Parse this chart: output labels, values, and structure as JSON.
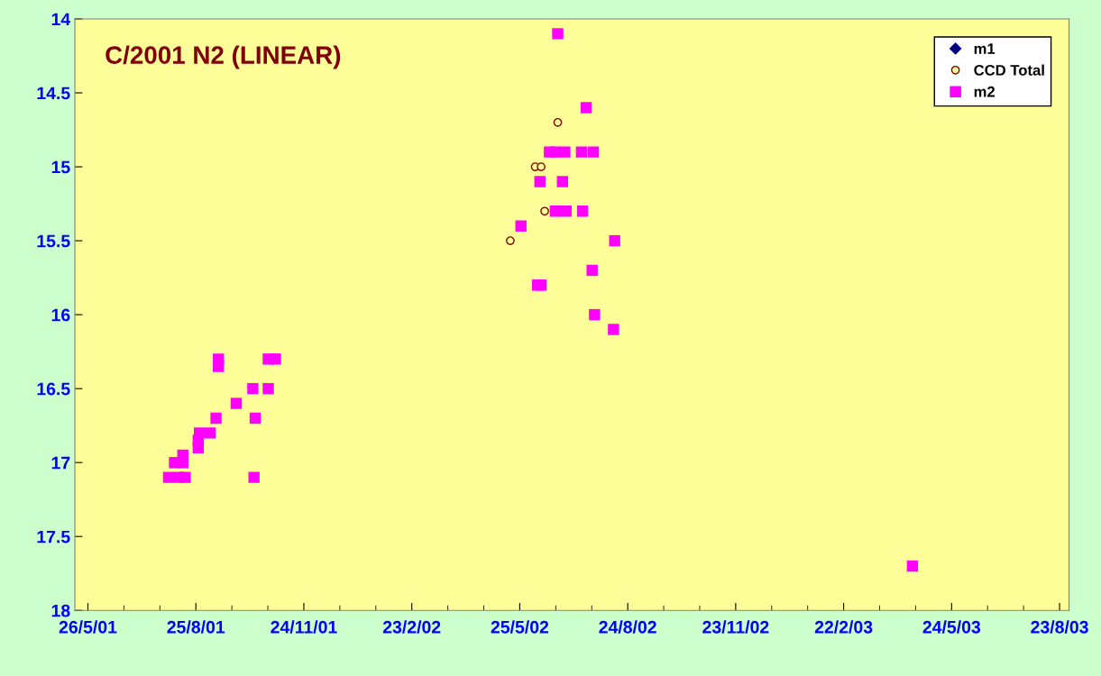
{
  "chart_data": {
    "type": "scatter",
    "title": "C/2001 N2 (LINEAR)",
    "series": [
      {
        "name": "m1",
        "color": "#000080",
        "marker": "diamond"
      },
      {
        "name": "CCD Total",
        "color": "#800000",
        "marker": "circle",
        "x": [
          "2002-06-26",
          "2002-06-07",
          "2002-06-12",
          "2002-06-15",
          "2002-05-17"
        ],
        "values": [
          14.7,
          15.0,
          15.0,
          15.3,
          15.5
        ]
      },
      {
        "name": "m2",
        "color": "#ff00ff",
        "marker": "square",
        "x": [
          "2001-09-13",
          "2001-09-13",
          "2001-10-25",
          "2001-10-31",
          "2001-10-12",
          "2001-10-25",
          "2001-09-28",
          "2001-09-11",
          "2001-10-14",
          "2001-08-28",
          "2001-09-06",
          "2001-08-27",
          "2001-08-27",
          "2001-08-14",
          "2001-08-07",
          "2001-08-14",
          "2001-08-02",
          "2001-08-11",
          "2001-08-16",
          "2001-10-13",
          "2002-06-26",
          "2002-07-20",
          "2002-06-19",
          "2002-06-24",
          "2002-07-02",
          "2002-07-16",
          "2002-07-26",
          "2002-06-11",
          "2002-06-30",
          "2002-06-24",
          "2002-07-03",
          "2002-07-17",
          "2002-05-26",
          "2002-08-13",
          "2002-07-25",
          "2002-06-09",
          "2002-06-12",
          "2002-07-27",
          "2002-08-12",
          "2003-04-21"
        ],
        "values": [
          16.3,
          16.35,
          16.3,
          16.3,
          16.5,
          16.5,
          16.6,
          16.7,
          16.7,
          16.8,
          16.8,
          16.85,
          16.9,
          16.95,
          17.0,
          17.0,
          17.1,
          17.1,
          17.1,
          17.1,
          14.1,
          14.6,
          14.9,
          14.9,
          14.9,
          14.9,
          14.9,
          15.1,
          15.1,
          15.3,
          15.3,
          15.3,
          15.4,
          15.5,
          15.7,
          15.8,
          15.8,
          16.0,
          16.1,
          17.7
        ]
      }
    ],
    "xlim": [
      "2001-05-15",
      "2003-08-31"
    ],
    "xticks": [
      {
        "value": "2001-05-26",
        "label": "26/5/01"
      },
      {
        "value": "2001-08-25",
        "label": "25/8/01"
      },
      {
        "value": "2001-11-24",
        "label": "24/11/01"
      },
      {
        "value": "2002-02-23",
        "label": "23/2/02"
      },
      {
        "value": "2002-05-25",
        "label": "25/5/02"
      },
      {
        "value": "2002-08-24",
        "label": "24/8/02"
      },
      {
        "value": "2002-11-23",
        "label": "23/11/02"
      },
      {
        "value": "2003-02-22",
        "label": "22/2/03"
      },
      {
        "value": "2003-05-24",
        "label": "24/5/03"
      },
      {
        "value": "2003-08-23",
        "label": "23/8/03"
      }
    ],
    "ylim": [
      18,
      14
    ],
    "yticks": [
      14,
      14.5,
      15,
      15.5,
      16,
      16.5,
      17,
      17.5,
      18
    ],
    "grid": false,
    "legend": "top right"
  }
}
